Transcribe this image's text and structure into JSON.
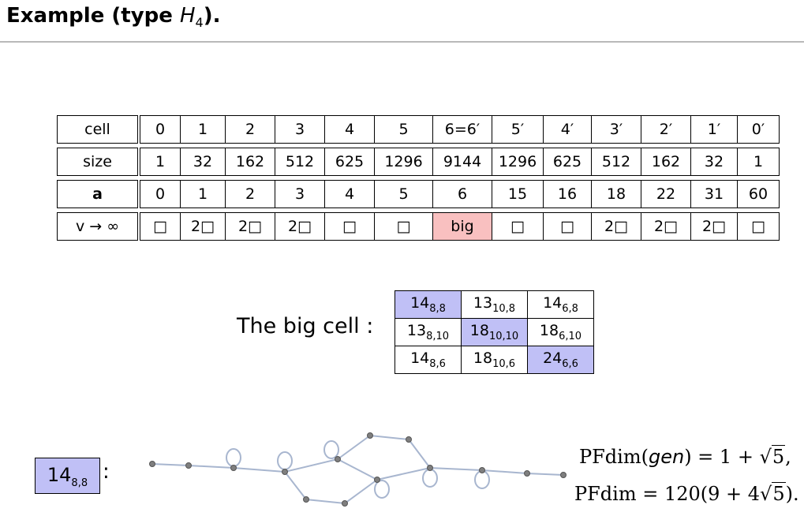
{
  "title": {
    "prefix": "Example (type ",
    "math_base": "H",
    "math_sub": "4",
    "suffix": ")."
  },
  "cells_table": {
    "rows": [
      {
        "header": "cell",
        "values": [
          "0",
          "1",
          "2",
          "3",
          "4",
          "5",
          "6=6′",
          "5′",
          "4′",
          "3′",
          "2′",
          "1′",
          "0′"
        ]
      },
      {
        "header": "size",
        "values": [
          "1",
          "32",
          "162",
          "512",
          "625",
          "1296",
          "9144",
          "1296",
          "625",
          "512",
          "162",
          "32",
          "1"
        ]
      },
      {
        "header": "a",
        "values": [
          "0",
          "1",
          "2",
          "3",
          "4",
          "5",
          "6",
          "15",
          "16",
          "18",
          "22",
          "31",
          "60"
        ]
      },
      {
        "header": "v → ∞",
        "values": [
          "□",
          "2□",
          "2□",
          "2□",
          "□",
          "□",
          "big",
          "□",
          "□",
          "2□",
          "2□",
          "2□",
          "□"
        ]
      }
    ],
    "highlight_color": "#f9c0c0"
  },
  "big_cell": {
    "label": "The big cell :",
    "rows": [
      [
        {
          "base": "14",
          "sub": "8,8",
          "hl": true
        },
        {
          "base": "13",
          "sub": "10,8",
          "hl": false
        },
        {
          "base": "14",
          "sub": "6,8",
          "hl": false
        }
      ],
      [
        {
          "base": "13",
          "sub": "8,10",
          "hl": false
        },
        {
          "base": "18",
          "sub": "10,10",
          "hl": true
        },
        {
          "base": "18",
          "sub": "6,10",
          "hl": false
        }
      ],
      [
        {
          "base": "14",
          "sub": "8,6",
          "hl": false
        },
        {
          "base": "18",
          "sub": "10,6",
          "hl": false
        },
        {
          "base": "24",
          "sub": "6,6",
          "hl": true
        }
      ]
    ],
    "highlight_color": "#c0c0f6"
  },
  "cell_example": {
    "base": "14",
    "sub": "8,8",
    "colon": ":"
  },
  "pf": {
    "line1": {
      "func": "PFdim(",
      "arg": "gen",
      "mid": ") = 1 + ",
      "root": "5",
      "end": ","
    },
    "line2": {
      "func": "PFdim = 120(9 + 4",
      "root": "5",
      "end": ")."
    }
  }
}
